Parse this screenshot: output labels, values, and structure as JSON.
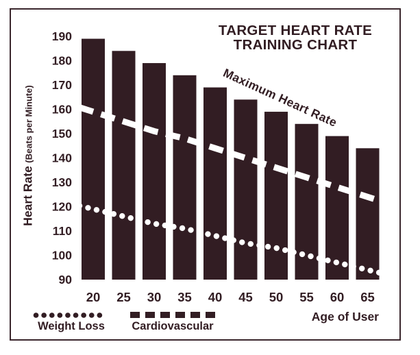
{
  "title_lines": [
    "TARGET HEART RATE",
    "TRAINING CHART"
  ],
  "chart_data": {
    "type": "bar",
    "title": "TARGET HEART RATE TRAINING CHART",
    "xlabel": "Age of User",
    "ylabel": "Heart Rate",
    "ylabel_sub": "(Beats per Minute)",
    "categories": [
      "20",
      "25",
      "30",
      "35",
      "40",
      "45",
      "50",
      "55",
      "60",
      "65"
    ],
    "yticks": [
      190,
      180,
      170,
      160,
      150,
      140,
      130,
      120,
      110,
      100,
      90
    ],
    "ylim": [
      90,
      190
    ],
    "grid": false,
    "legend_position": "bottom-left",
    "bars": {
      "name": "Maximum Heart Rate",
      "values": [
        189,
        184,
        179,
        174,
        169,
        164,
        159,
        154,
        149,
        144
      ]
    },
    "series": [
      {
        "name": "Cardiovascular",
        "style": "dashed",
        "values": [
          159,
          155,
          151,
          148,
          144,
          140,
          136,
          132,
          128,
          124
        ]
      },
      {
        "name": "Weight Loss",
        "style": "dotted",
        "values": [
          119,
          116,
          113,
          111,
          108,
          105,
          103,
          100,
          97,
          94
        ]
      }
    ],
    "annotation": "Maximum Heart Rate"
  },
  "legend": {
    "weight_loss": "Weight Loss",
    "cardiovascular": "Cardiovascular"
  },
  "colors": {
    "ink": "#321d23",
    "line_on_bar": "#ffffff",
    "background": "#ffffff",
    "frame_border": "#3a262c"
  }
}
